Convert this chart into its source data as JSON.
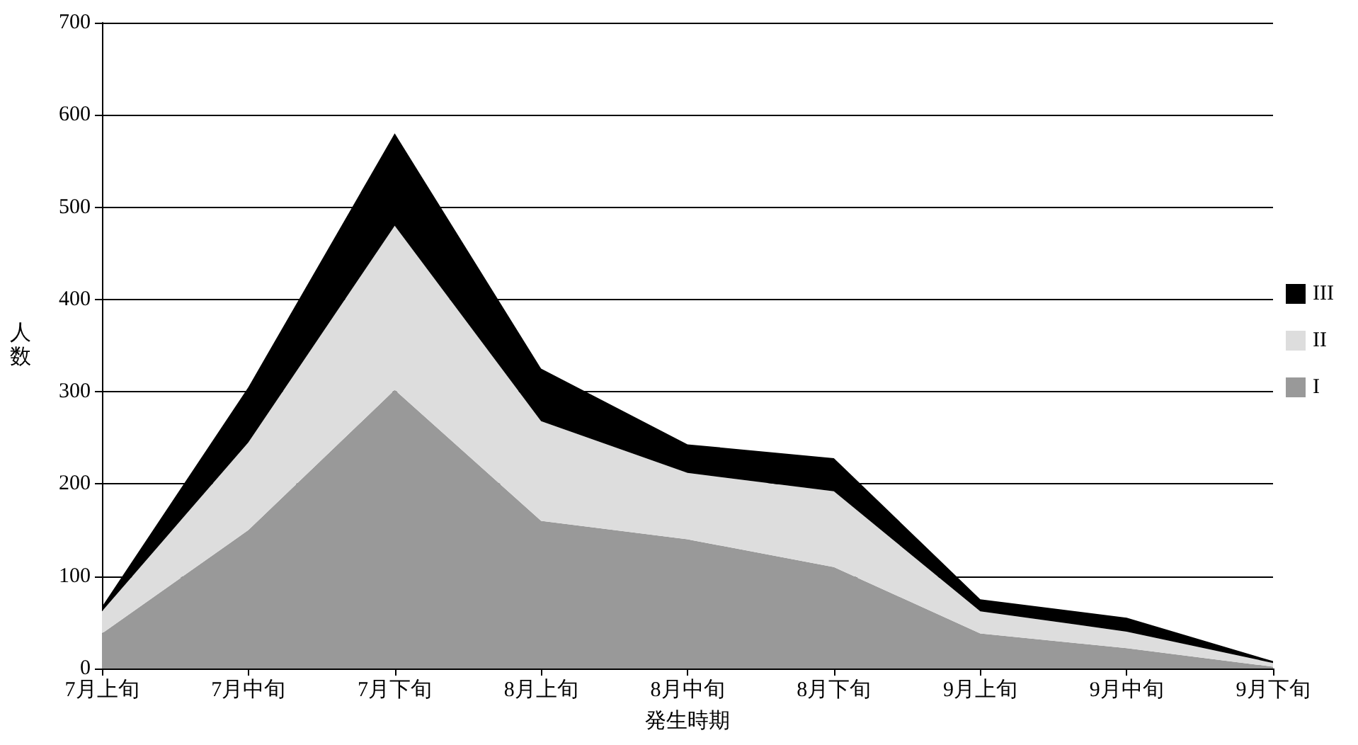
{
  "chart_data": {
    "type": "area",
    "stacked": true,
    "xlabel": "発生時期",
    "ylabel": "人数",
    "categories": [
      "7月上旬",
      "7月中旬",
      "7月下旬",
      "8月上旬",
      "8月中旬",
      "8月下旬",
      "9月上旬",
      "9月中旬",
      "9月下旬"
    ],
    "series": [
      {
        "name": "I",
        "color": "#999999",
        "values": [
          38,
          150,
          302,
          160,
          140,
          110,
          38,
          22,
          2
        ]
      },
      {
        "name": "II",
        "color": "#dddddd",
        "values": [
          24,
          95,
          178,
          108,
          72,
          82,
          24,
          18,
          4
        ]
      },
      {
        "name": "III",
        "color": "#000000",
        "values": [
          5,
          60,
          100,
          57,
          31,
          36,
          13,
          15,
          2
        ]
      }
    ],
    "ylim": [
      0,
      700
    ],
    "yticks": [
      0,
      100,
      200,
      300,
      400,
      500,
      600,
      700
    ],
    "grid": "y",
    "legend": "right",
    "marker": "none"
  }
}
